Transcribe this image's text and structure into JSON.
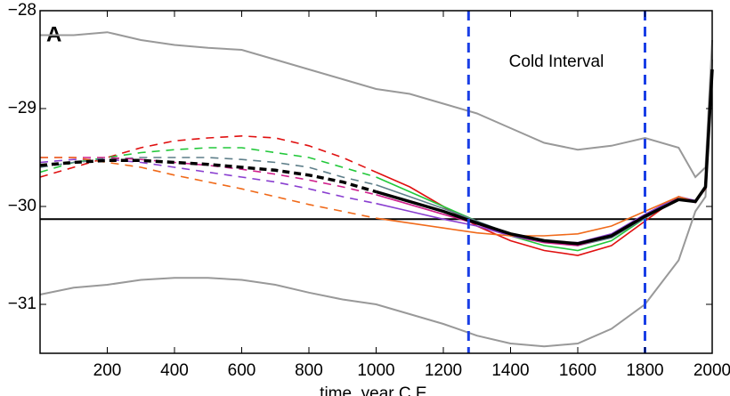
{
  "chart_data": {
    "type": "line",
    "panel_label": "A",
    "annotation": "Cold Interval",
    "xlabel": "time, year C.E.",
    "xlim": [
      0,
      2000
    ],
    "ylim": [
      -31.5,
      -28
    ],
    "xticks": [
      200,
      400,
      600,
      800,
      1000,
      1200,
      1400,
      1600,
      1800,
      2000
    ],
    "yticks": [
      {
        "value": -28,
        "label": "−28"
      },
      {
        "value": -29,
        "label": "−29"
      },
      {
        "value": -30,
        "label": "−30"
      },
      {
        "value": -31,
        "label": "−31"
      }
    ],
    "vlines": [
      {
        "x": 1275,
        "color": "#1a3fe6"
      },
      {
        "x": 1800,
        "color": "#1a3fe6"
      }
    ],
    "hline": {
      "y": -30.13,
      "color": "#000000"
    },
    "x": [
      0,
      100,
      200,
      300,
      400,
      500,
      600,
      700,
      800,
      900,
      1000,
      1100,
      1200,
      1300,
      1400,
      1500,
      1600,
      1700,
      1800,
      1900,
      1950,
      1980,
      2000
    ],
    "series": [
      {
        "color": "#999999",
        "dash": false,
        "width": 2,
        "values": [
          -28.25,
          -28.25,
          -28.22,
          -28.3,
          -28.35,
          -28.38,
          -28.4,
          -28.5,
          -28.6,
          -28.7,
          -28.8,
          -28.85,
          -28.95,
          -29.05,
          -29.2,
          -29.35,
          -29.42,
          -29.38,
          -29.3,
          -29.4,
          -29.7,
          -29.6,
          -28.3
        ]
      },
      {
        "color": "#999999",
        "dash": false,
        "width": 2,
        "values": [
          -30.9,
          -30.83,
          -30.8,
          -30.75,
          -30.73,
          -30.73,
          -30.75,
          -30.8,
          -30.88,
          -30.95,
          -31.0,
          -31.1,
          -31.2,
          -31.32,
          -31.4,
          -31.43,
          -31.4,
          -31.25,
          -31.0,
          -30.55,
          -30.05,
          -29.9,
          -28.5
        ]
      },
      {
        "color": "#e01010",
        "dash": true,
        "width": 1.6,
        "values": [
          -29.7,
          -29.6,
          -29.5,
          -29.4,
          -29.33,
          -29.3,
          -29.28,
          -29.3,
          -29.38,
          -29.5,
          -29.65,
          null,
          null,
          null,
          null,
          null,
          null,
          null,
          null,
          null,
          null,
          null,
          null
        ]
      },
      {
        "color": "#e01010",
        "dash": false,
        "width": 1.6,
        "values": [
          null,
          null,
          null,
          null,
          null,
          null,
          null,
          null,
          null,
          null,
          -29.65,
          -29.8,
          -30.0,
          -30.2,
          -30.35,
          -30.45,
          -30.5,
          -30.4,
          -30.15,
          -29.9,
          -29.95,
          -29.82,
          -28.6
        ]
      },
      {
        "color": "#22c83a",
        "dash": true,
        "width": 1.6,
        "values": [
          -29.65,
          -29.55,
          -29.5,
          -29.45,
          -29.42,
          -29.4,
          -29.4,
          -29.45,
          -29.5,
          -29.6,
          -29.7,
          null,
          null,
          null,
          null,
          null,
          null,
          null,
          null,
          null,
          null,
          null,
          null
        ]
      },
      {
        "color": "#22c83a",
        "dash": false,
        "width": 1.6,
        "values": [
          null,
          null,
          null,
          null,
          null,
          null,
          null,
          null,
          null,
          null,
          -29.7,
          -29.85,
          -30.0,
          -30.15,
          -30.3,
          -30.4,
          -30.45,
          -30.35,
          -30.12,
          -29.92,
          -29.95,
          -29.8,
          -28.6
        ]
      },
      {
        "color": "#5f7f8a",
        "dash": true,
        "width": 1.6,
        "values": [
          -29.6,
          -29.55,
          -29.52,
          -29.5,
          -29.5,
          -29.5,
          -29.52,
          -29.55,
          -29.6,
          -29.7,
          -29.78,
          null,
          null,
          null,
          null,
          null,
          null,
          null,
          null,
          null,
          null,
          null,
          null
        ]
      },
      {
        "color": "#5f7f8a",
        "dash": false,
        "width": 1.6,
        "values": [
          null,
          null,
          null,
          null,
          null,
          null,
          null,
          null,
          null,
          null,
          -29.78,
          -29.9,
          -30.02,
          -30.15,
          -30.28,
          -30.36,
          -30.4,
          -30.32,
          -30.12,
          -29.92,
          -29.95,
          -29.8,
          -28.6
        ]
      },
      {
        "color": "#d0208c",
        "dash": true,
        "width": 1.6,
        "values": [
          -29.5,
          -29.5,
          -29.5,
          -29.52,
          -29.55,
          -29.58,
          -29.62,
          -29.67,
          -29.73,
          -29.8,
          -29.88,
          null,
          null,
          null,
          null,
          null,
          null,
          null,
          null,
          null,
          null,
          null,
          null
        ]
      },
      {
        "color": "#d0208c",
        "dash": false,
        "width": 1.6,
        "values": [
          null,
          null,
          null,
          null,
          null,
          null,
          null,
          null,
          null,
          null,
          -29.88,
          -29.98,
          -30.08,
          -30.18,
          -30.3,
          -30.37,
          -30.4,
          -30.3,
          -30.1,
          -29.92,
          -29.96,
          -29.8,
          -28.6
        ]
      },
      {
        "color": "#8a3fd0",
        "dash": true,
        "width": 1.6,
        "values": [
          -29.55,
          -29.52,
          -29.52,
          -29.55,
          -29.6,
          -29.65,
          -29.7,
          -29.75,
          -29.82,
          -29.9,
          -29.97,
          null,
          null,
          null,
          null,
          null,
          null,
          null,
          null,
          null,
          null,
          null,
          null
        ]
      },
      {
        "color": "#8a3fd0",
        "dash": false,
        "width": 1.6,
        "values": [
          null,
          null,
          null,
          null,
          null,
          null,
          null,
          null,
          null,
          null,
          -29.97,
          -30.05,
          -30.13,
          -30.2,
          -30.3,
          -30.36,
          -30.37,
          -30.28,
          -30.08,
          -29.9,
          -29.94,
          -29.8,
          -28.6
        ]
      },
      {
        "color": "#f06a1a",
        "dash": true,
        "width": 1.6,
        "values": [
          -29.5,
          -29.5,
          -29.55,
          -29.6,
          -29.68,
          -29.75,
          -29.82,
          -29.9,
          -29.98,
          -30.05,
          -30.12,
          null,
          null,
          null,
          null,
          null,
          null,
          null,
          null,
          null,
          null,
          null,
          null
        ]
      },
      {
        "color": "#f06a1a",
        "dash": false,
        "width": 1.6,
        "values": [
          null,
          null,
          null,
          null,
          null,
          null,
          null,
          null,
          null,
          null,
          -30.12,
          -30.17,
          -30.22,
          -30.27,
          -30.3,
          -30.3,
          -30.28,
          -30.2,
          -30.05,
          -29.9,
          -29.95,
          -29.8,
          -28.6
        ]
      },
      {
        "color": "#000000",
        "dash": true,
        "width": 3.5,
        "values": [
          -29.58,
          -29.55,
          -29.53,
          -29.53,
          -29.55,
          -29.57,
          -29.6,
          -29.63,
          -29.68,
          -29.75,
          -29.85,
          null,
          null,
          null,
          null,
          null,
          null,
          null,
          null,
          null,
          null,
          null,
          null
        ]
      },
      {
        "color": "#000000",
        "dash": false,
        "width": 3.5,
        "values": [
          null,
          null,
          null,
          null,
          null,
          null,
          null,
          null,
          null,
          null,
          -29.85,
          -29.95,
          -30.05,
          -30.17,
          -30.28,
          -30.35,
          -30.38,
          -30.3,
          -30.1,
          -29.93,
          -29.95,
          -29.8,
          -28.6
        ]
      }
    ]
  }
}
